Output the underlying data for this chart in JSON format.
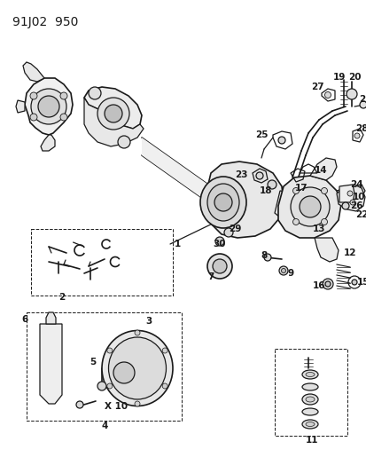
{
  "title": "91J02  950",
  "bg_color": "#ffffff",
  "line_color": "#1a1a1a",
  "title_fontsize": 10,
  "label_fontsize": 7.5,
  "fig_width": 4.14,
  "fig_height": 5.33,
  "dpi": 100
}
